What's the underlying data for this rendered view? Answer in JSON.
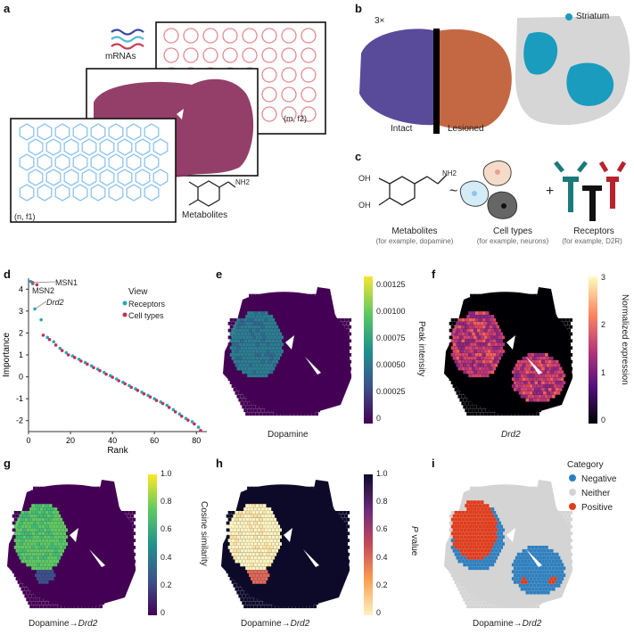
{
  "panels": {
    "a": {
      "label": "a",
      "mrnas_label": "mRNAs",
      "metabolites_label": "Metabolites",
      "grid_m_label": "(m, f2)",
      "grid_n_label": "(n, f1)",
      "nh2_label": "NH2",
      "colors": {
        "mrna1": "#3a4a9a",
        "mrna2": "#55b8d8",
        "mrna3": "#c83c55",
        "circle": "#e48a92",
        "hex": "#8ec4ec",
        "tissue": "#8b2f5c"
      }
    },
    "b": {
      "label": "b",
      "scale_label": "3×",
      "intact_label": "Intact",
      "lesioned_label": "Lesioned",
      "legend_label": "Striatum",
      "colors": {
        "striatum": "#1a9cbf",
        "background": "#d6d6d6"
      }
    },
    "c": {
      "label": "c",
      "oh_top": "OH",
      "oh_bottom": "OH",
      "nh2": "NH2",
      "tilde": "~",
      "plus": "+",
      "metabolites_title": "Metabolites",
      "metabolites_example": "(for example, dopamine)",
      "celltypes_title": "Cell types",
      "celltypes_example": "(for example, neurons)",
      "receptors_title": "Receptors",
      "receptors_example": "(for example, D2R)"
    },
    "d": {
      "label": "d",
      "legend_title": "View",
      "legend_items": [
        "Receptors",
        "Cell types"
      ],
      "colors": {
        "Receptors": "#2aa6b8",
        "Cell types": "#c0305a"
      },
      "annotations": [
        "MSN1",
        "MSN2",
        "Drd2"
      ]
    },
    "e": {
      "label": "e",
      "caption": "Dopamine",
      "cbar_title": "Peak intensity",
      "cbar_ticks": [
        "0.00125",
        "0.00100",
        "0.00075",
        "0.00050",
        "0.00025",
        "0"
      ]
    },
    "f": {
      "label": "f",
      "caption": "Drd2",
      "cbar_title": "Normalized expression",
      "cbar_ticks": [
        "3",
        "2",
        "1",
        "0"
      ]
    },
    "g": {
      "label": "g",
      "caption_prefix": "Dopamine→",
      "caption_gene": "Drd2",
      "cbar_title": "Cosine similarity",
      "cbar_ticks": [
        "1.0",
        "0.8",
        "0.6",
        "0.4",
        "0.2",
        "0"
      ]
    },
    "h": {
      "label": "h",
      "caption_prefix": "Dopamine→",
      "caption_gene": "Drd2",
      "cbar_title_italic": "P",
      "cbar_title_rest": " value",
      "cbar_ticks": [
        "1.0",
        "0.8",
        "0.6",
        "0.4",
        "0.2",
        "0"
      ]
    },
    "i": {
      "label": "i",
      "caption_prefix": "Dopamine→",
      "caption_gene": "Drd2",
      "legend_title": "Category",
      "legend_items": [
        "Negative",
        "Neither",
        "Positive"
      ],
      "colors": {
        "Negative": "#2e7fbf",
        "Neither": "#d4d4d4",
        "Positive": "#e03c1c"
      }
    }
  },
  "chart_data": {
    "type": "scatter",
    "title": "",
    "xlabel": "Rank",
    "ylabel": "Importance",
    "xlim": [
      0,
      85
    ],
    "ylim": [
      -2.5,
      4.5
    ],
    "xticks": [
      "0",
      "20",
      "40",
      "60",
      "80"
    ],
    "yticks": [
      "4",
      "3",
      "2",
      "1",
      "0",
      "-1",
      "-2"
    ],
    "series": [
      {
        "name": "Receptors",
        "x": [
          1,
          2,
          3,
          6,
          9,
          12,
          15,
          18,
          21,
          24,
          27,
          30,
          33,
          36,
          39,
          42,
          45,
          48,
          51,
          54,
          57,
          60,
          63,
          66,
          69,
          72,
          75,
          78,
          81
        ],
        "y": [
          4.35,
          4.25,
          3.1,
          2.6,
          1.8,
          1.6,
          1.3,
          1.1,
          0.95,
          0.8,
          0.65,
          0.5,
          0.35,
          0.2,
          0.05,
          -0.1,
          -0.25,
          -0.4,
          -0.55,
          -0.7,
          -0.85,
          -1.0,
          -1.15,
          -1.3,
          -1.5,
          -1.7,
          -1.9,
          -2.05,
          -2.3
        ]
      },
      {
        "name": "Cell types",
        "x": [
          2,
          4,
          7,
          10,
          13,
          16,
          19,
          22,
          25,
          28,
          31,
          34,
          37,
          40,
          43,
          46,
          49,
          52,
          55,
          58,
          61,
          64,
          67,
          70,
          73,
          76,
          79,
          82
        ],
        "y": [
          4.3,
          4.2,
          1.9,
          1.7,
          1.45,
          1.2,
          1.0,
          0.88,
          0.72,
          0.58,
          0.42,
          0.28,
          0.12,
          -0.02,
          -0.18,
          -0.32,
          -0.48,
          -0.62,
          -0.78,
          -0.92,
          -1.08,
          -1.22,
          -1.4,
          -1.6,
          -1.8,
          -1.98,
          -2.15,
          -2.45
        ]
      }
    ]
  }
}
